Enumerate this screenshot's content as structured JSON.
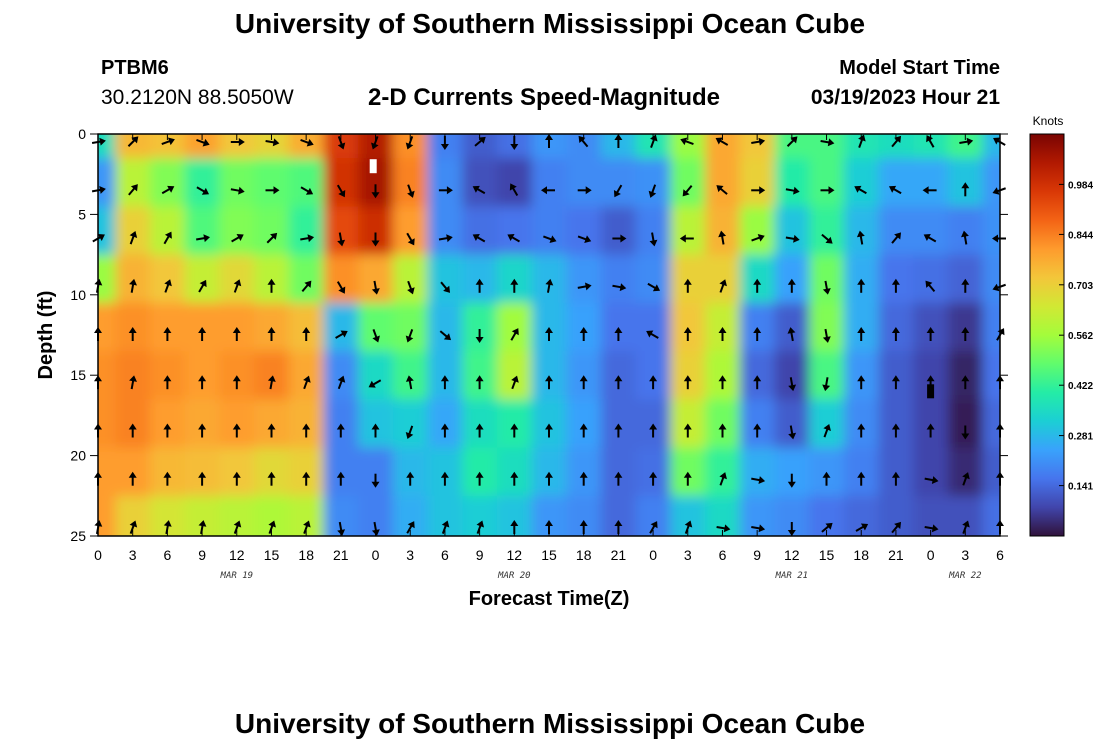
{
  "header": {
    "title": "University of Southern Mississippi Ocean Cube",
    "station_id": "PTBM6",
    "station_coords": "30.2120N  88.5050W",
    "subtitle": "2-D Currents Speed-Magnitude",
    "model_start_label": "Model Start Time",
    "model_start_value": "03/19/2023 Hour 21"
  },
  "footer": {
    "title": "University of Southern Mississippi Ocean Cube"
  },
  "chart_data": {
    "type": "heatmap",
    "title": "2-D Currents Speed-Magnitude",
    "xlabel": "Forecast Time(Z)",
    "ylabel": "Depth (ft)",
    "x_hours": [
      0,
      3,
      6,
      9,
      12,
      15,
      18,
      21,
      24,
      27,
      30,
      33,
      36,
      39,
      42,
      45,
      48,
      51,
      54,
      57,
      60,
      63,
      66,
      69,
      72,
      75,
      78
    ],
    "x_tick_labels": [
      "0",
      "3",
      "6",
      "9",
      "12",
      "15",
      "18",
      "21",
      "0",
      "3",
      "6",
      "9",
      "12",
      "15",
      "18",
      "21",
      "0",
      "3",
      "6",
      "9",
      "12",
      "15",
      "18",
      "21",
      "0",
      "3",
      "6"
    ],
    "date_labels": [
      {
        "text": "MAR 19",
        "hour": 12
      },
      {
        "text": "MAR 20",
        "hour": 36
      },
      {
        "text": "MAR 21",
        "hour": 60
      },
      {
        "text": "MAR 22",
        "hour": 75
      }
    ],
    "xlim": [
      0,
      78
    ],
    "y_ticks": [
      0,
      5,
      10,
      15,
      20,
      25
    ],
    "ylim": [
      0,
      25
    ],
    "y_inverted": true,
    "depths_ft": [
      0,
      3,
      6,
      9,
      12,
      15,
      18,
      21,
      24
    ],
    "speed_knots": [
      [
        0.36,
        0.75,
        0.73,
        0.79,
        0.72,
        0.69,
        0.77,
        0.96,
        1.04,
        0.82,
        0.18,
        0.12,
        0.15,
        0.22,
        0.2,
        0.28,
        0.38,
        0.55,
        0.78,
        0.72,
        0.45,
        0.45,
        0.38,
        0.36,
        0.38,
        0.44,
        0.28
      ],
      [
        0.22,
        0.6,
        0.52,
        0.42,
        0.5,
        0.48,
        0.46,
        0.98,
        1.06,
        0.84,
        0.2,
        0.1,
        0.08,
        0.18,
        0.2,
        0.2,
        0.21,
        0.5,
        0.78,
        0.7,
        0.4,
        0.45,
        0.32,
        0.25,
        0.25,
        0.3,
        0.22
      ],
      [
        0.3,
        0.7,
        0.6,
        0.46,
        0.52,
        0.5,
        0.42,
        0.93,
        0.99,
        0.8,
        0.2,
        0.15,
        0.16,
        0.18,
        0.16,
        0.12,
        0.18,
        0.6,
        0.76,
        0.55,
        0.3,
        0.42,
        0.28,
        0.2,
        0.2,
        0.18,
        0.21
      ],
      [
        0.55,
        0.76,
        0.72,
        0.62,
        0.68,
        0.6,
        0.5,
        0.82,
        0.78,
        0.6,
        0.3,
        0.28,
        0.34,
        0.28,
        0.22,
        0.18,
        0.2,
        0.7,
        0.7,
        0.35,
        0.24,
        0.5,
        0.26,
        0.16,
        0.15,
        0.13,
        0.2
      ],
      [
        0.8,
        0.82,
        0.8,
        0.8,
        0.8,
        0.78,
        0.74,
        0.28,
        0.48,
        0.5,
        0.28,
        0.42,
        0.56,
        0.28,
        0.24,
        0.16,
        0.16,
        0.72,
        0.62,
        0.18,
        0.12,
        0.52,
        0.26,
        0.14,
        0.1,
        0.06,
        0.18
      ],
      [
        0.82,
        0.84,
        0.82,
        0.8,
        0.82,
        0.84,
        0.78,
        0.2,
        0.35,
        0.44,
        0.28,
        0.44,
        0.6,
        0.28,
        0.22,
        0.14,
        0.16,
        0.7,
        0.58,
        0.14,
        0.08,
        0.45,
        0.22,
        0.12,
        0.08,
        0.03,
        0.16
      ],
      [
        0.82,
        0.84,
        0.8,
        0.78,
        0.8,
        0.78,
        0.76,
        0.18,
        0.3,
        0.32,
        0.25,
        0.36,
        0.4,
        0.3,
        0.24,
        0.14,
        0.14,
        0.62,
        0.5,
        0.18,
        0.12,
        0.32,
        0.2,
        0.12,
        0.08,
        0.02,
        0.14
      ],
      [
        0.8,
        0.8,
        0.75,
        0.74,
        0.72,
        0.68,
        0.7,
        0.18,
        0.18,
        0.28,
        0.3,
        0.4,
        0.36,
        0.28,
        0.22,
        0.14,
        0.15,
        0.5,
        0.42,
        0.26,
        0.24,
        0.22,
        0.18,
        0.12,
        0.08,
        0.04,
        0.12
      ],
      [
        0.8,
        0.7,
        0.65,
        0.62,
        0.6,
        0.58,
        0.6,
        0.2,
        0.18,
        0.26,
        0.3,
        0.32,
        0.3,
        0.22,
        0.2,
        0.14,
        0.18,
        0.3,
        0.35,
        0.22,
        0.2,
        0.16,
        0.14,
        0.12,
        0.1,
        0.1,
        0.15
      ]
    ],
    "direction_deg": [
      [
        80,
        45,
        70,
        110,
        90,
        100,
        110,
        160,
        200,
        200,
        180,
        50,
        180,
        0,
        320,
        0,
        20,
        290,
        300,
        80,
        45,
        100,
        20,
        40,
        330,
        80,
        300
      ],
      [
        80,
        40,
        60,
        120,
        100,
        90,
        120,
        150,
        180,
        160,
        90,
        300,
        330,
        270,
        90,
        210,
        200,
        220,
        310,
        90,
        100,
        90,
        300,
        300,
        270,
        0,
        250
      ],
      [
        60,
        20,
        30,
        80,
        60,
        45,
        80,
        170,
        180,
        150,
        80,
        300,
        300,
        110,
        110,
        90,
        170,
        270,
        350,
        70,
        100,
        130,
        350,
        40,
        300,
        350,
        270
      ],
      [
        10,
        10,
        20,
        30,
        20,
        0,
        40,
        150,
        170,
        160,
        140,
        0,
        0,
        10,
        80,
        100,
        120,
        0,
        20,
        0,
        0,
        170,
        0,
        0,
        320,
        0,
        250
      ],
      [
        0,
        0,
        0,
        0,
        0,
        0,
        0,
        60,
        160,
        200,
        130,
        180,
        30,
        0,
        0,
        0,
        300,
        0,
        0,
        0,
        350,
        170,
        0,
        0,
        0,
        0,
        30
      ],
      [
        0,
        10,
        0,
        0,
        0,
        10,
        20,
        20,
        240,
        350,
        0,
        0,
        20,
        0,
        0,
        0,
        0,
        0,
        0,
        0,
        170,
        190,
        0,
        0,
        0,
        0,
        0
      ],
      [
        0,
        0,
        0,
        0,
        0,
        0,
        0,
        0,
        0,
        200,
        0,
        0,
        0,
        0,
        0,
        0,
        0,
        0,
        0,
        0,
        170,
        20,
        0,
        0,
        0,
        180,
        0
      ],
      [
        0,
        0,
        0,
        0,
        0,
        0,
        0,
        0,
        180,
        0,
        0,
        0,
        0,
        0,
        0,
        0,
        0,
        0,
        20,
        100,
        180,
        0,
        0,
        0,
        100,
        20,
        0
      ],
      [
        10,
        20,
        10,
        10,
        20,
        20,
        20,
        170,
        170,
        30,
        20,
        20,
        0,
        0,
        0,
        0,
        30,
        20,
        100,
        100,
        180,
        50,
        60,
        40,
        100,
        20,
        0
      ]
    ],
    "colorbar": {
      "unit": "Knots",
      "tick_values": [
        0.141,
        0.281,
        0.422,
        0.562,
        0.703,
        0.844,
        0.984
      ],
      "tick_labels": [
        "0.141",
        "0.281",
        "0.422",
        "0.562",
        "0.703",
        "0.844",
        "0.984"
      ],
      "range": [
        0,
        1.125
      ],
      "colors": [
        "#30123b",
        "#4145ab",
        "#4675ed",
        "#39a2fc",
        "#1bcfd4",
        "#24eca6",
        "#61fc6c",
        "#a4fc3b",
        "#d1e834",
        "#f3c63a",
        "#fe9b2d",
        "#f36315",
        "#d93806",
        "#b11901",
        "#7a0402"
      ]
    },
    "flags": [
      {
        "hour": 23.8,
        "depth": 2.0,
        "color": "#ffffff"
      },
      {
        "hour": 72.0,
        "depth": 16.0,
        "color": "#000000"
      }
    ]
  }
}
